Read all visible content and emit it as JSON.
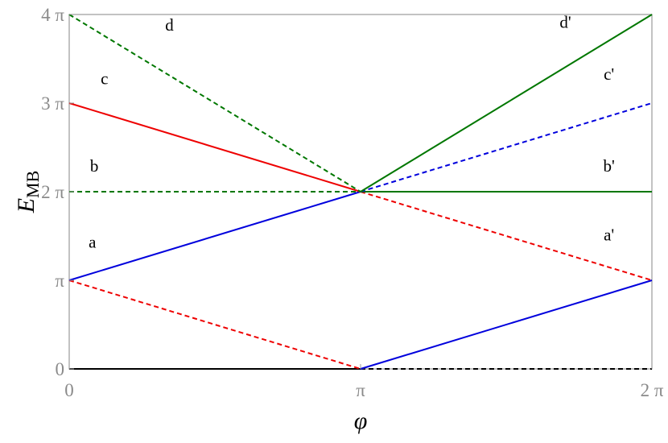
{
  "chart_data": {
    "type": "line",
    "xlabel": "φ",
    "ylabel": "E",
    "ylabel_sub": "MB",
    "xlim": [
      0,
      6.283185
    ],
    "ylim": [
      0,
      12.566371
    ],
    "x_ticks": [
      {
        "value": 0,
        "label": "0"
      },
      {
        "value": 3.141593,
        "label": "π"
      },
      {
        "value": 6.283185,
        "label": "2 π"
      }
    ],
    "y_ticks": [
      {
        "value": 0,
        "label": "0"
      },
      {
        "value": 3.141593,
        "label": "π"
      },
      {
        "value": 6.283185,
        "label": "2 π"
      },
      {
        "value": 9.424778,
        "label": "3 π"
      },
      {
        "value": 12.566371,
        "label": "4 π"
      }
    ],
    "grid": false,
    "colors": {
      "blue": "#0000dd",
      "red": "#ee0000",
      "green": "#007700",
      "black": "#000000"
    },
    "series": [
      {
        "color": "#000000",
        "dash": false,
        "x": [
          0,
          3.141593
        ],
        "y": [
          0,
          0
        ]
      },
      {
        "color": "#000000",
        "dash": true,
        "x": [
          3.141593,
          6.283185
        ],
        "y": [
          0,
          0
        ]
      },
      {
        "color": "#ee0000",
        "dash": true,
        "x": [
          0,
          3.141593
        ],
        "y": [
          3.141593,
          0
        ]
      },
      {
        "color": "#0000dd",
        "dash": false,
        "x": [
          3.141593,
          6.283185
        ],
        "y": [
          0,
          3.141593
        ]
      },
      {
        "color": "#0000dd",
        "dash": false,
        "x": [
          0,
          3.141593
        ],
        "y": [
          3.141593,
          6.283185
        ]
      },
      {
        "color": "#ee0000",
        "dash": true,
        "x": [
          3.141593,
          6.283185
        ],
        "y": [
          6.283185,
          3.141593
        ]
      },
      {
        "color": "#007700",
        "dash": true,
        "x": [
          0,
          3.141593
        ],
        "y": [
          6.283185,
          6.283185
        ]
      },
      {
        "color": "#007700",
        "dash": false,
        "x": [
          3.141593,
          6.283185
        ],
        "y": [
          6.283185,
          6.283185
        ]
      },
      {
        "color": "#ee0000",
        "dash": false,
        "x": [
          0,
          3.141593
        ],
        "y": [
          9.424778,
          6.283185
        ]
      },
      {
        "color": "#0000dd",
        "dash": true,
        "x": [
          3.141593,
          6.283185
        ],
        "y": [
          6.283185,
          9.424778
        ]
      },
      {
        "color": "#007700",
        "dash": true,
        "x": [
          0,
          3.141593
        ],
        "y": [
          12.566371,
          6.283185
        ]
      },
      {
        "color": "#007700",
        "dash": false,
        "x": [
          3.141593,
          6.283185
        ],
        "y": [
          6.283185,
          12.566371
        ]
      }
    ],
    "annotations": [
      {
        "text": "a",
        "x": 0.25,
        "y": 4.3
      },
      {
        "text": "b",
        "x": 0.27,
        "y": 7.0
      },
      {
        "text": "c",
        "x": 0.38,
        "y": 10.1
      },
      {
        "text": "d",
        "x": 1.08,
        "y": 12.0
      },
      {
        "text": "a'",
        "x": 5.82,
        "y": 4.55
      },
      {
        "text": "b'",
        "x": 5.82,
        "y": 7.0
      },
      {
        "text": "c'",
        "x": 5.82,
        "y": 10.25
      },
      {
        "text": "d'",
        "x": 5.35,
        "y": 12.1
      }
    ]
  }
}
